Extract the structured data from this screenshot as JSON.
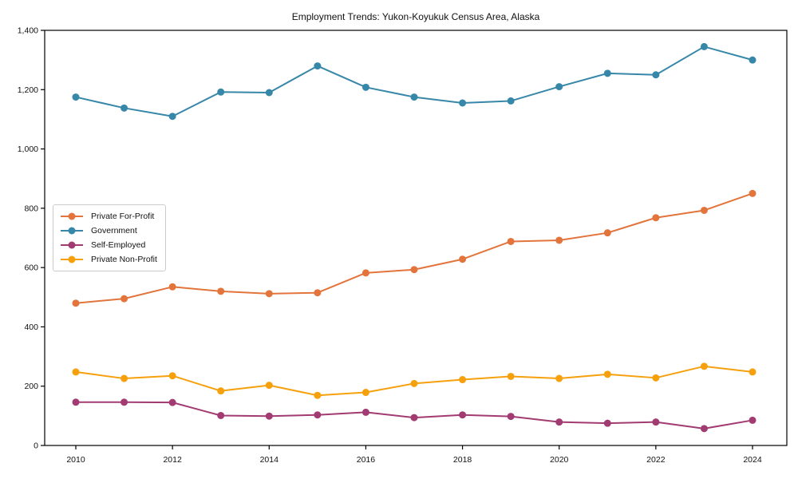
{
  "chart_data": {
    "type": "line",
    "title": "Employment Trends: Yukon-Koyukuk Census Area, Alaska",
    "xlabel": "",
    "ylabel": "",
    "x": [
      2010,
      2011,
      2012,
      2013,
      2014,
      2015,
      2016,
      2017,
      2018,
      2019,
      2020,
      2021,
      2022,
      2023,
      2024
    ],
    "xticks": [
      2010,
      2012,
      2014,
      2016,
      2018,
      2020,
      2022,
      2024
    ],
    "xtick_labels": [
      "2010",
      "2012",
      "2014",
      "2016",
      "2018",
      "2020",
      "2022",
      "2024"
    ],
    "ylim": [
      0,
      1400
    ],
    "yticks": [
      0,
      200,
      400,
      600,
      800,
      1000,
      1200,
      1400
    ],
    "ytick_labels": [
      "0",
      "200",
      "400",
      "600",
      "800",
      "1,000",
      "1,200",
      "1,400"
    ],
    "grid": false,
    "legend_position": "center-left",
    "marker": "circle",
    "axis_color": "#000000",
    "series": [
      {
        "name": "Private For-Profit",
        "color": "#E2743C",
        "values": [
          480,
          495,
          535,
          520,
          512,
          515,
          582,
          593,
          628,
          688,
          692,
          717,
          768,
          793,
          850
        ]
      },
      {
        "name": "Government",
        "color": "#3787A8",
        "values": [
          1175,
          1138,
          1110,
          1192,
          1190,
          1280,
          1208,
          1175,
          1155,
          1162,
          1210,
          1255,
          1250,
          1345,
          1300
        ]
      },
      {
        "name": "Self-Employed",
        "color": "#A23B72",
        "values": [
          146,
          146,
          145,
          101,
          99,
          103,
          112,
          94,
          103,
          98,
          79,
          75,
          79,
          57,
          85
        ]
      },
      {
        "name": "Private Non-Profit",
        "color": "#F5A00C",
        "values": [
          248,
          226,
          235,
          184,
          203,
          169,
          179,
          209,
          222,
          233,
          226,
          240,
          228,
          267,
          248
        ]
      }
    ]
  }
}
